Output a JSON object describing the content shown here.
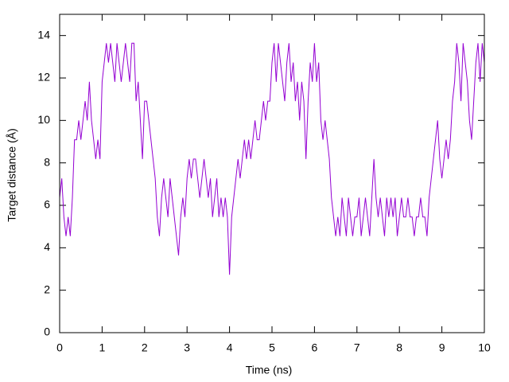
{
  "chart_data": {
    "type": "line",
    "xlabel": "Time (ns)",
    "ylabel": "Target distance (Å)",
    "xlim": [
      0,
      10
    ],
    "ylim": [
      0,
      15
    ],
    "xticks": [
      0,
      1,
      2,
      3,
      4,
      5,
      6,
      7,
      8,
      9,
      10
    ],
    "yticks": [
      0,
      2,
      4,
      6,
      8,
      10,
      12,
      14
    ],
    "x": [
      0,
      0.05,
      0.1,
      0.15,
      0.2,
      0.25,
      0.3,
      0.35,
      0.4,
      0.45,
      0.5,
      0.55,
      0.6,
      0.65,
      0.7,
      0.75,
      0.8,
      0.85,
      0.9,
      0.95,
      1,
      1.05,
      1.1,
      1.15,
      1.2,
      1.25,
      1.3,
      1.35,
      1.4,
      1.45,
      1.5,
      1.55,
      1.6,
      1.65,
      1.7,
      1.75,
      1.8,
      1.85,
      1.9,
      1.95,
      2,
      2.05,
      2.1,
      2.15,
      2.2,
      2.25,
      2.3,
      2.35,
      2.4,
      2.45,
      2.5,
      2.55,
      2.6,
      2.65,
      2.7,
      2.75,
      2.8,
      2.85,
      2.9,
      2.95,
      3,
      3.05,
      3.1,
      3.15,
      3.2,
      3.25,
      3.3,
      3.35,
      3.4,
      3.45,
      3.5,
      3.55,
      3.6,
      3.65,
      3.7,
      3.75,
      3.8,
      3.85,
      3.9,
      3.95,
      4,
      4.05,
      4.1,
      4.15,
      4.2,
      4.25,
      4.3,
      4.35,
      4.4,
      4.45,
      4.5,
      4.55,
      4.6,
      4.65,
      4.7,
      4.75,
      4.8,
      4.85,
      4.9,
      4.95,
      5,
      5.05,
      5.1,
      5.15,
      5.2,
      5.25,
      5.3,
      5.35,
      5.4,
      5.45,
      5.5,
      5.55,
      5.6,
      5.65,
      5.7,
      5.75,
      5.8,
      5.85,
      5.9,
      5.95,
      6,
      6.05,
      6.1,
      6.15,
      6.2,
      6.25,
      6.3,
      6.35,
      6.4,
      6.45,
      6.5,
      6.55,
      6.6,
      6.65,
      6.7,
      6.75,
      6.8,
      6.85,
      6.9,
      6.95,
      7,
      7.05,
      7.1,
      7.15,
      7.2,
      7.25,
      7.3,
      7.35,
      7.4,
      7.45,
      7.5,
      7.55,
      7.6,
      7.65,
      7.7,
      7.75,
      7.8,
      7.85,
      7.9,
      7.95,
      8,
      8.05,
      8.1,
      8.15,
      8.2,
      8.25,
      8.3,
      8.35,
      8.4,
      8.45,
      8.5,
      8.55,
      8.6,
      8.65,
      8.7,
      8.75,
      8.8,
      8.85,
      8.9,
      8.95,
      9,
      9.05,
      9.1,
      9.15,
      9.2,
      9.25,
      9.3,
      9.35,
      9.4,
      9.45,
      9.5,
      9.55,
      9.6,
      9.65,
      9.7,
      9.75,
      9.8,
      9.85,
      9.9,
      9.95,
      10
    ],
    "series": [
      {
        "color": "#9400d3",
        "values": [
          6.36,
          7.27,
          5.45,
          4.55,
          5.45,
          4.55,
          6.36,
          9.09,
          9.09,
          10.0,
          9.09,
          10.0,
          10.91,
          10.0,
          11.82,
          10.0,
          9.09,
          8.18,
          9.09,
          8.18,
          11.82,
          12.73,
          13.64,
          12.73,
          13.64,
          12.73,
          11.82,
          13.64,
          12.73,
          11.82,
          12.73,
          13.64,
          12.73,
          11.82,
          13.64,
          13.64,
          10.91,
          11.82,
          10.0,
          8.18,
          10.91,
          10.91,
          10.0,
          9.09,
          8.18,
          7.27,
          5.45,
          4.55,
          6.36,
          7.27,
          6.36,
          5.45,
          7.27,
          6.36,
          5.45,
          4.55,
          3.64,
          5.45,
          6.36,
          5.45,
          7.27,
          8.18,
          7.27,
          8.18,
          8.18,
          7.27,
          6.36,
          7.27,
          8.18,
          7.27,
          6.36,
          7.27,
          5.45,
          6.36,
          7.27,
          5.45,
          6.36,
          5.45,
          6.36,
          5.45,
          2.73,
          5.45,
          6.36,
          7.27,
          8.18,
          7.27,
          8.18,
          9.09,
          8.18,
          9.09,
          8.18,
          9.09,
          10.0,
          9.09,
          9.09,
          10.0,
          10.91,
          10.0,
          10.91,
          10.91,
          12.73,
          13.64,
          11.82,
          13.64,
          12.73,
          11.82,
          10.91,
          12.73,
          13.64,
          11.82,
          12.73,
          10.91,
          11.82,
          10.0,
          11.82,
          10.91,
          8.18,
          10.91,
          12.73,
          11.82,
          13.64,
          11.82,
          12.73,
          10.0,
          9.09,
          10.0,
          9.09,
          8.18,
          6.36,
          5.45,
          4.55,
          5.45,
          4.55,
          6.36,
          5.45,
          4.55,
          6.36,
          5.45,
          4.55,
          5.45,
          5.45,
          6.36,
          4.55,
          5.45,
          6.36,
          5.45,
          4.55,
          6.36,
          8.18,
          6.36,
          5.45,
          6.36,
          5.45,
          4.55,
          6.36,
          5.45,
          6.36,
          5.45,
          6.36,
          4.55,
          5.45,
          6.36,
          5.45,
          5.45,
          6.36,
          5.45,
          5.45,
          4.55,
          5.45,
          5.45,
          6.36,
          5.45,
          5.45,
          4.55,
          6.36,
          7.27,
          8.18,
          9.09,
          10.0,
          8.18,
          7.27,
          8.18,
          9.09,
          8.18,
          9.09,
          10.91,
          11.82,
          13.64,
          12.73,
          10.91,
          13.64,
          12.73,
          11.82,
          10.0,
          9.09,
          10.91,
          12.73,
          13.64,
          11.82,
          13.64,
          12.73
        ]
      }
    ]
  }
}
